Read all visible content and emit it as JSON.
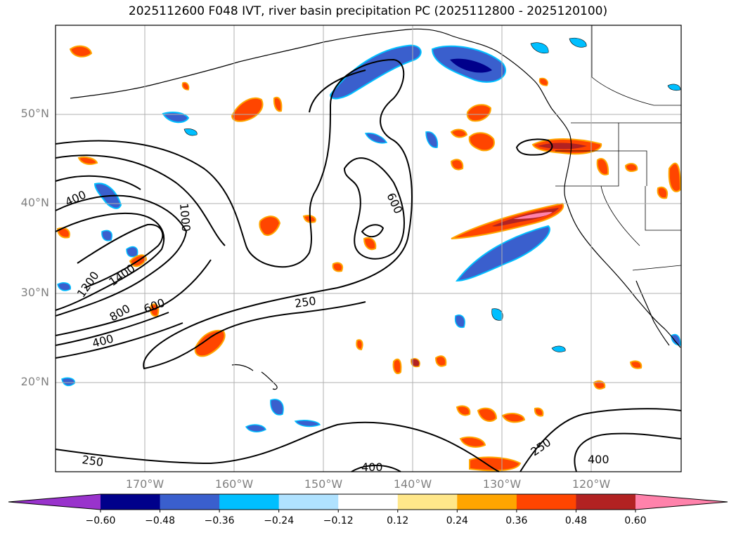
{
  "title": "2025112600 F048 IVT, river basin precipitation PC (2025112800 - 2025120100)",
  "map": {
    "lon_range": [
      -180,
      -110
    ],
    "lat_range": [
      10,
      60
    ],
    "lat_labels": [
      "50°N",
      "40°N",
      "30°N",
      "20°N"
    ],
    "lon_labels": [
      "170°W",
      "160°W",
      "150°W",
      "140°W",
      "130°W",
      "120°W"
    ],
    "ivt_contour_labels": [
      "400",
      "1000",
      "600",
      "1200",
      "1400",
      "800",
      "600",
      "400",
      "250",
      "250",
      "250",
      "400",
      "400"
    ]
  },
  "colorbar": {
    "ticks": [
      "−0.60",
      "−0.48",
      "−0.36",
      "−0.24",
      "−0.12",
      "0.12",
      "0.24",
      "0.36",
      "0.48",
      "0.60"
    ],
    "colors": [
      "#9933cc",
      "#00008b",
      "#3a5fcd",
      "#00bfff",
      "#b0e2ff",
      "#ffffff",
      "#ffe78a",
      "#ffa500",
      "#ff4500",
      "#b22222",
      "#ff82ab"
    ]
  }
}
